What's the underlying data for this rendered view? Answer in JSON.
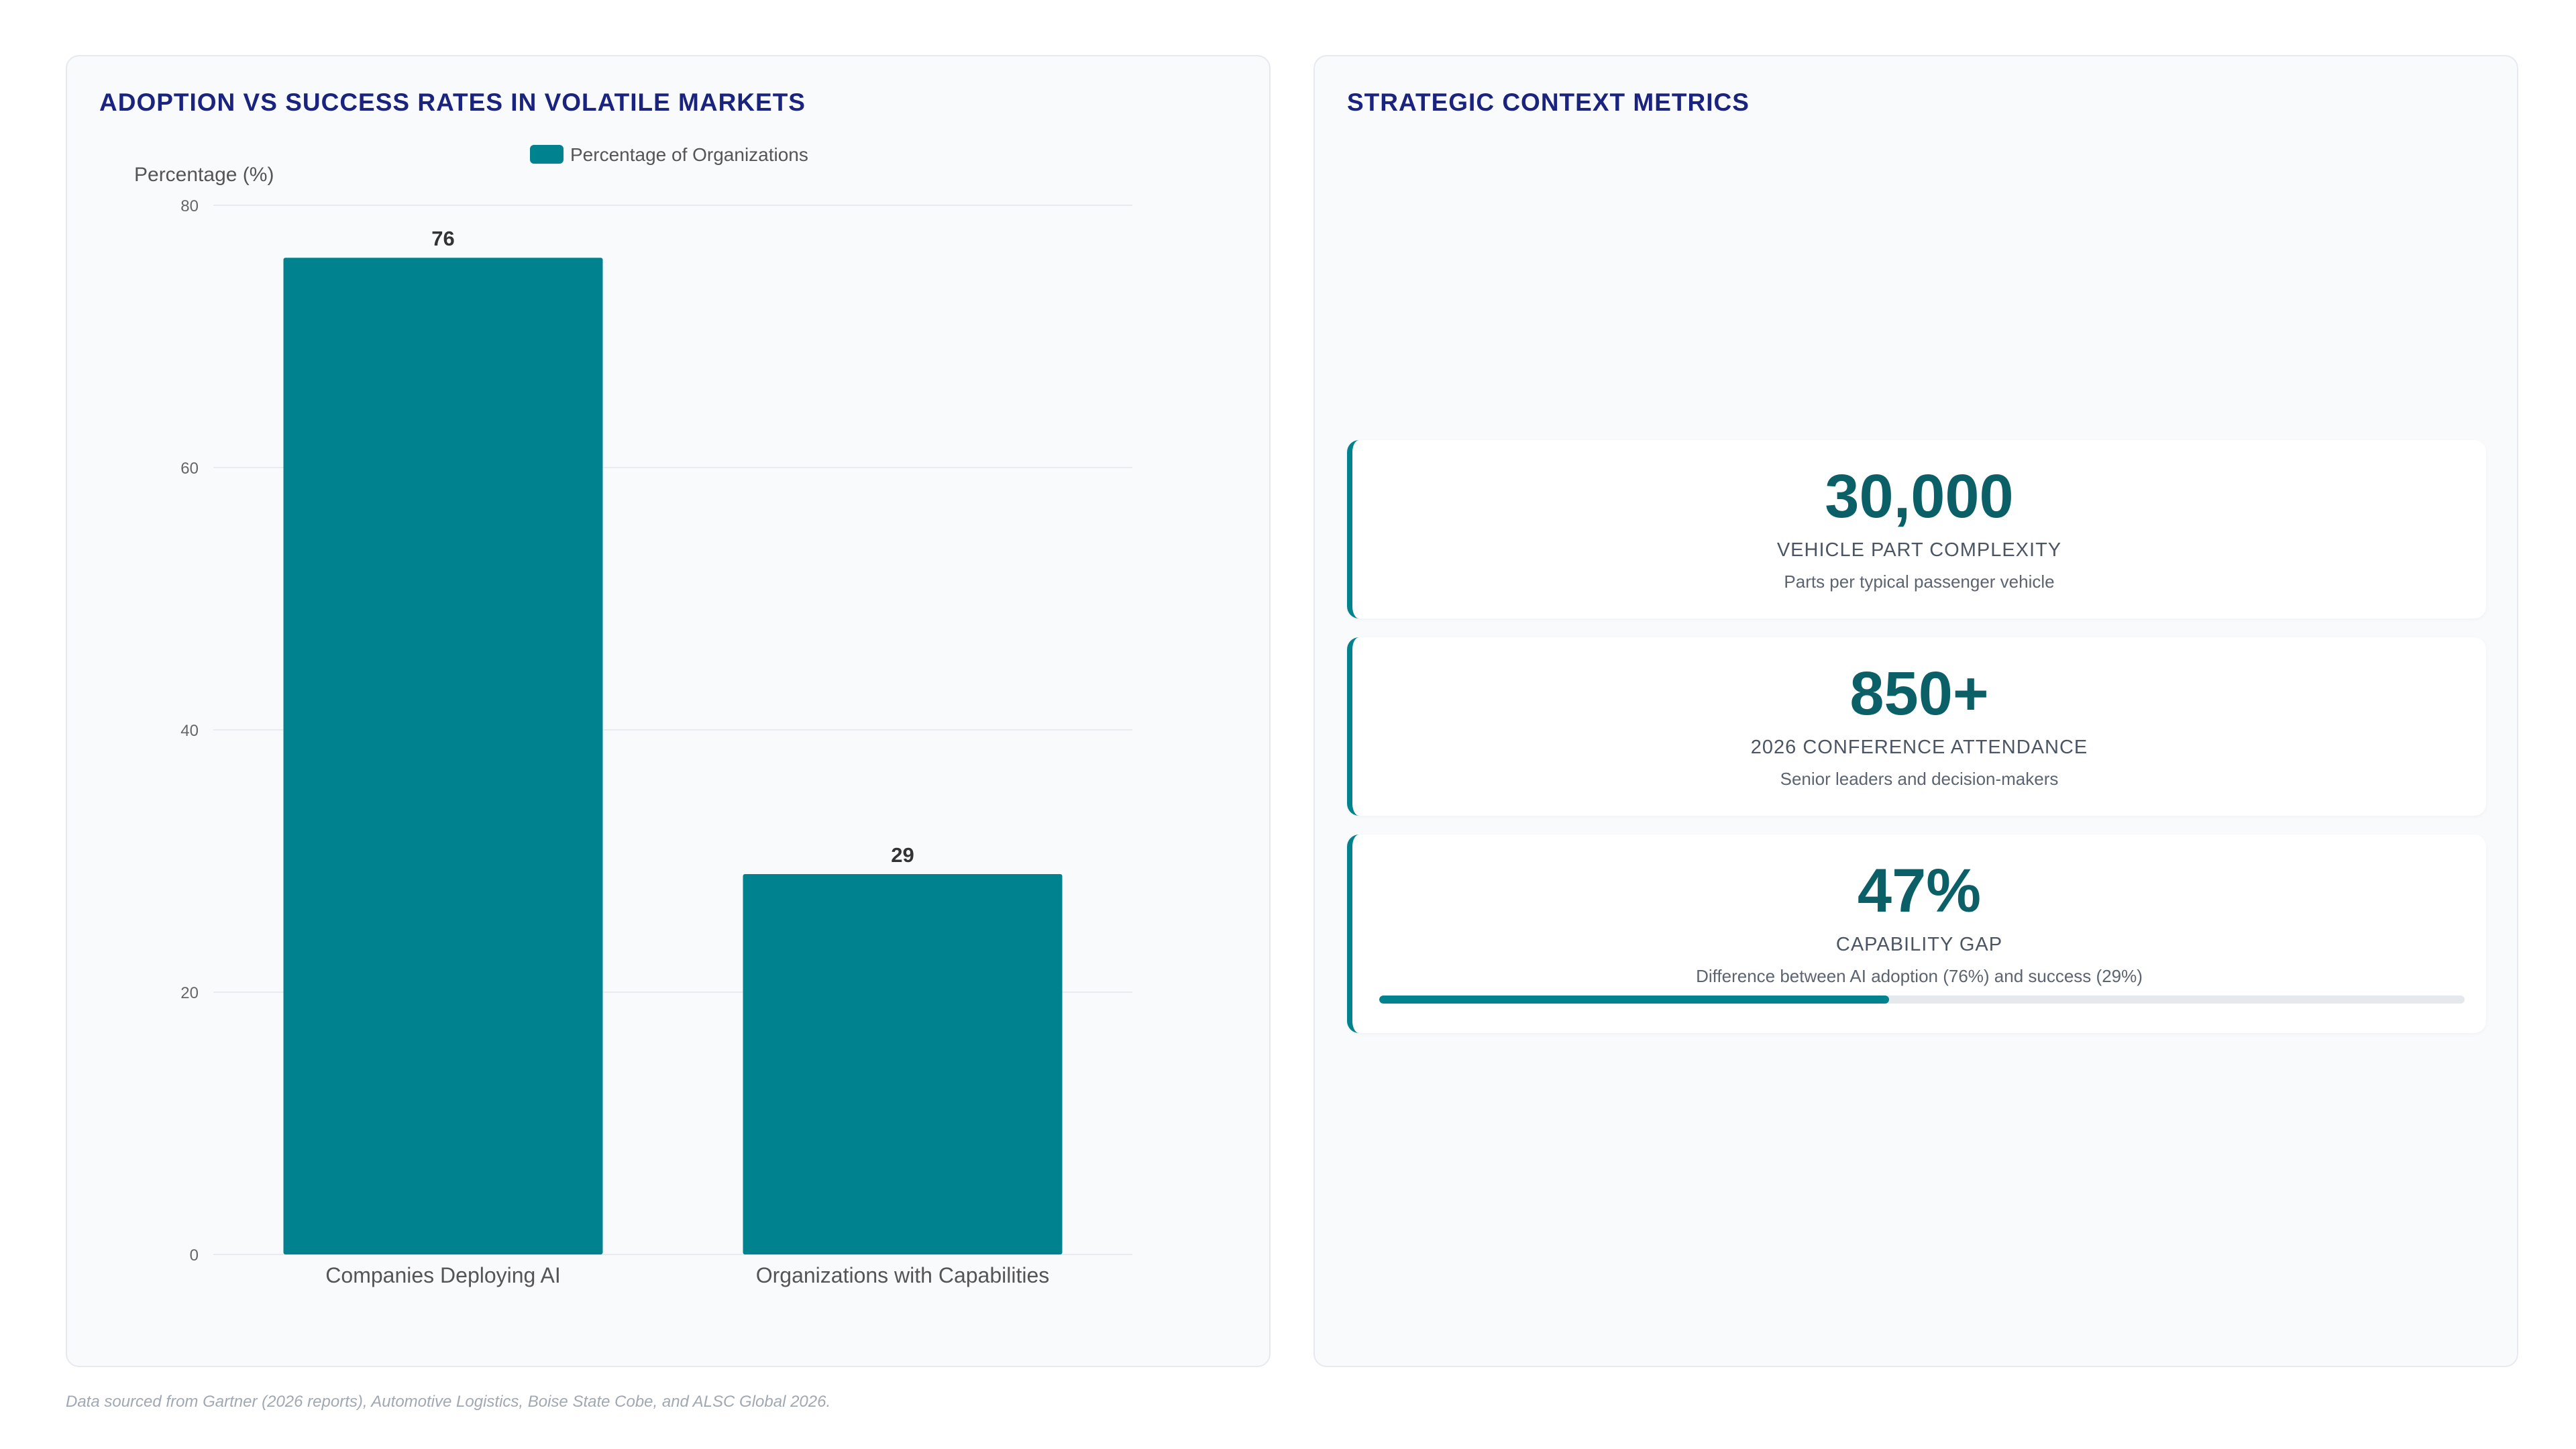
{
  "left_panel": {
    "title": "ADOPTION VS SUCCESS RATES IN VOLATILE MARKETS"
  },
  "right_panel": {
    "title": "STRATEGIC CONTEXT METRICS",
    "cards": [
      {
        "value": "30,000",
        "label": "VEHICLE PART COMPLEXITY",
        "description": "Parts per typical passenger vehicle"
      },
      {
        "value": "850+",
        "label": "2026 CONFERENCE ATTENDANCE",
        "description": "Senior leaders and decision-makers"
      },
      {
        "value": "47%",
        "label": "CAPABILITY GAP",
        "description": "Difference between AI adoption (76%) and success (29%)",
        "progress_percent": 47
      }
    ]
  },
  "footnote": "Data sourced from Gartner (2026 reports), Automotive Logistics, Boise State Cobe, and ALSC Global 2026.",
  "colors": {
    "bar": "#00838f",
    "title": "#1a237e",
    "metric_value": "#0b6068",
    "accent": "#00838f"
  },
  "chart_data": {
    "type": "bar",
    "categories": [
      "Companies Deploying AI",
      "Organizations with Capabilities"
    ],
    "series": [
      {
        "name": "Percentage of Organizations",
        "values": [
          76,
          29
        ]
      }
    ],
    "data_labels": [
      "76",
      "29"
    ],
    "ylabel": "Percentage (%)",
    "xlabel": "",
    "ylim": [
      0,
      80
    ],
    "yticks": [
      0,
      20,
      40,
      60,
      80
    ],
    "grid": true,
    "legend": "top-center"
  }
}
